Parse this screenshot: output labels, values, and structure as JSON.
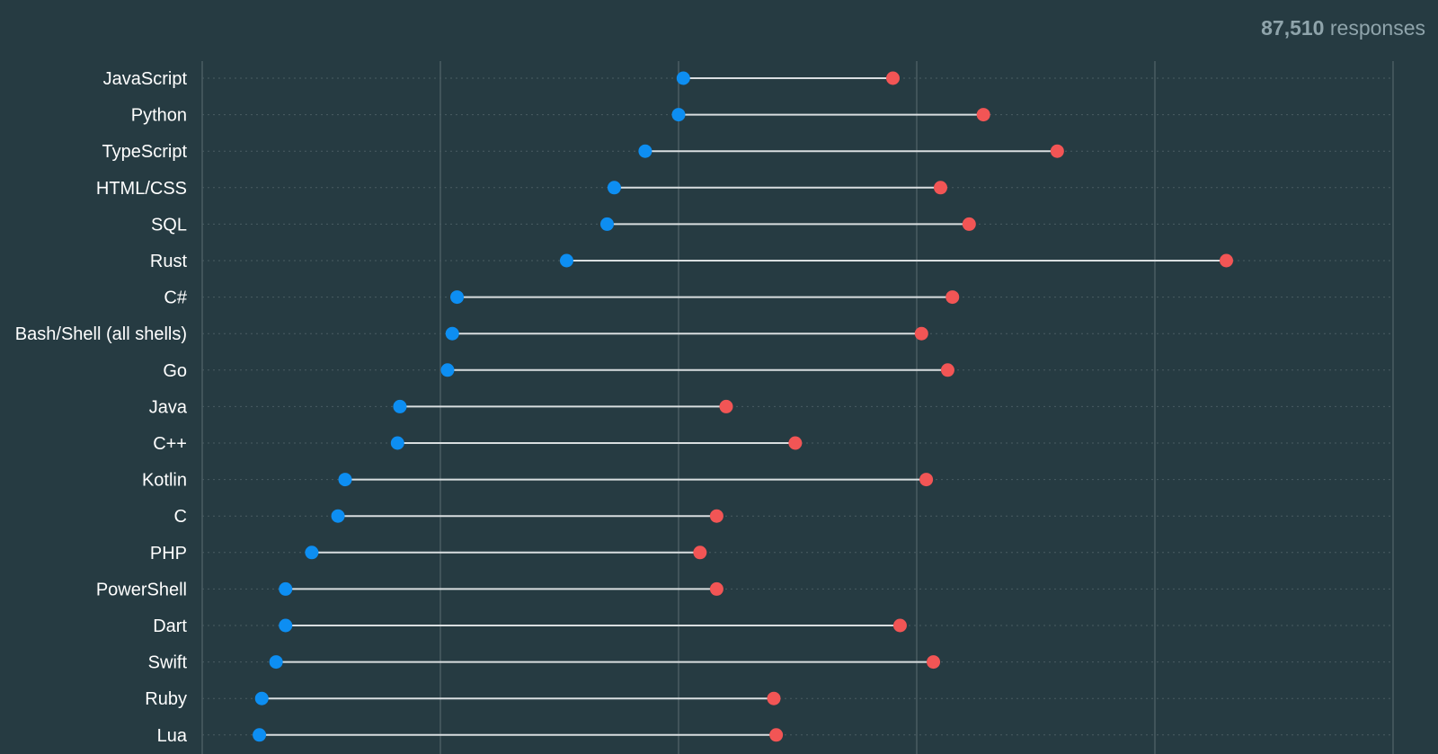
{
  "header": {
    "responses_count": "87,510",
    "responses_label": "responses"
  },
  "colors": {
    "background": "#263b42",
    "series_a": "#0d8ef2",
    "series_b": "#f25555",
    "connector": "#d9dee0",
    "gridline": "#4a5d63"
  },
  "chart_data": {
    "type": "dumbbell",
    "title": "",
    "xlabel": "",
    "ylabel": "",
    "xlim": [
      0,
      5
    ],
    "grid": true,
    "categories": [
      "JavaScript",
      "Python",
      "TypeScript",
      "HTML/CSS",
      "SQL",
      "Rust",
      "C#",
      "Bash/Shell (all shells)",
      "Go",
      "Java",
      "C++",
      "Kotlin",
      "C",
      "PHP",
      "PowerShell",
      "Dart",
      "Swift",
      "Ruby",
      "Lua"
    ],
    "series": [
      {
        "values": [
          2.02,
          2.0,
          1.86,
          1.73,
          1.7,
          1.53,
          1.07,
          1.05,
          1.03,
          0.83,
          0.82,
          0.6,
          0.57,
          0.46,
          0.35,
          0.35,
          0.31,
          0.25,
          0.24
        ]
      },
      {
        "values": [
          2.9,
          3.28,
          3.59,
          3.1,
          3.22,
          4.3,
          3.15,
          3.02,
          3.13,
          2.2,
          2.49,
          3.04,
          2.16,
          2.09,
          2.16,
          2.93,
          3.07,
          2.4,
          2.41
        ]
      }
    ]
  }
}
